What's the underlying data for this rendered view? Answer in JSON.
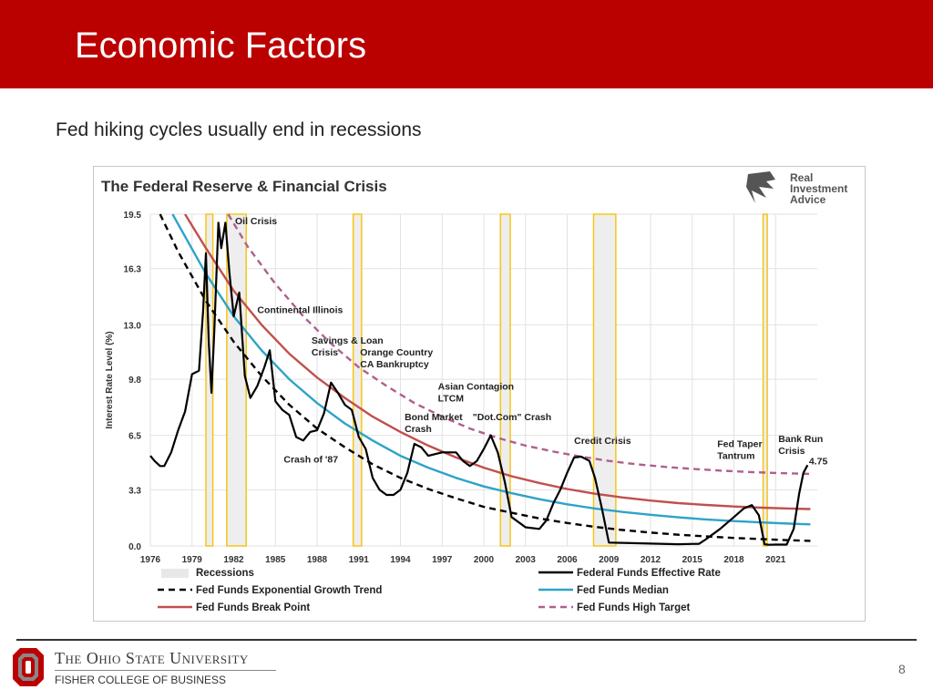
{
  "slide": {
    "title": "Economic Factors",
    "subtitle": "Fed hiking cycles usually end in recessions",
    "page_number": "8",
    "footer": {
      "university": "The Ohio State University",
      "college": "FISHER COLLEGE OF BUSINESS"
    }
  },
  "chart_data": {
    "type": "line",
    "title": "The Federal Reserve & Financial Crisis",
    "brand": [
      "Real",
      "Investment",
      "Advice"
    ],
    "ylabel": "Interest Rate Level (%)",
    "xlabel": "",
    "xlim": [
      1976,
      2024
    ],
    "ylim": [
      0,
      19.5
    ],
    "y_ticks": [
      0.0,
      3.3,
      6.5,
      9.8,
      13.0,
      16.3,
      19.5
    ],
    "y_tick_labels": [
      "0.0",
      "3.3",
      "6.5",
      "9.8",
      "13.0",
      "16.3",
      "19.5"
    ],
    "x_ticks": [
      1976,
      1979,
      1982,
      1985,
      1988,
      1991,
      1994,
      1997,
      2000,
      2003,
      2006,
      2009,
      2012,
      2015,
      2018,
      2021
    ],
    "x_tick_labels": [
      "1976",
      "1979",
      "1982",
      "1985",
      "1988",
      "1991",
      "1994",
      "1997",
      "2000",
      "2003",
      "2006",
      "2009",
      "2012",
      "2015",
      "2018",
      "2021"
    ],
    "grid": true,
    "legend_position": "bottom",
    "recessions": [
      [
        1980.0,
        1980.5
      ],
      [
        1981.5,
        1982.9
      ],
      [
        1990.6,
        1991.2
      ],
      [
        2001.2,
        2001.9
      ],
      [
        2007.9,
        2009.5
      ],
      [
        2020.1,
        2020.4
      ]
    ],
    "series": [
      {
        "name": "Federal Funds Effective Rate",
        "style": "solid",
        "color": "#000000",
        "x": [
          1976.0,
          1976.3,
          1976.7,
          1977.0,
          1977.5,
          1978.0,
          1978.5,
          1979.0,
          1979.5,
          1979.8,
          1980.0,
          1980.2,
          1980.4,
          1980.6,
          1980.9,
          1981.1,
          1981.4,
          1981.7,
          1982.0,
          1982.4,
          1982.8,
          1983.2,
          1983.7,
          1984.2,
          1984.6,
          1985.0,
          1985.5,
          1986.0,
          1986.5,
          1987.0,
          1987.5,
          1988.0,
          1988.5,
          1989.0,
          1989.5,
          1990.0,
          1990.5,
          1991.0,
          1991.5,
          1992.0,
          1992.5,
          1993.0,
          1993.5,
          1994.0,
          1994.5,
          1995.0,
          1995.5,
          1996.0,
          1997.0,
          1998.0,
          1998.5,
          1999.0,
          1999.5,
          2000.0,
          2000.5,
          2001.0,
          2001.5,
          2002.0,
          2003.0,
          2004.0,
          2004.5,
          2005.0,
          2005.5,
          2006.0,
          2006.5,
          2007.0,
          2007.6,
          2008.0,
          2008.5,
          2009.0,
          2010.0,
          2012.0,
          2014.0,
          2015.5,
          2016.0,
          2017.0,
          2018.0,
          2018.7,
          2019.3,
          2019.8,
          2020.2,
          2020.5,
          2021.0,
          2021.8,
          2022.3,
          2022.7,
          2023.0,
          2023.3
        ],
        "values": [
          5.3,
          5.0,
          4.7,
          4.7,
          5.5,
          6.8,
          7.9,
          10.1,
          10.3,
          13.8,
          17.2,
          12.0,
          9.0,
          12.5,
          19.0,
          17.5,
          19.0,
          16.0,
          13.5,
          14.9,
          10.0,
          8.7,
          9.4,
          10.5,
          11.5,
          8.5,
          8.0,
          7.7,
          6.4,
          6.2,
          6.7,
          6.8,
          7.8,
          9.6,
          9.0,
          8.3,
          8.0,
          6.4,
          5.7,
          4.0,
          3.3,
          3.0,
          3.0,
          3.3,
          4.3,
          6.0,
          5.8,
          5.3,
          5.5,
          5.5,
          5.0,
          4.7,
          5.0,
          5.7,
          6.5,
          5.5,
          3.8,
          1.7,
          1.1,
          1.0,
          1.5,
          2.5,
          3.3,
          4.3,
          5.2,
          5.25,
          5.0,
          4.0,
          2.2,
          0.2,
          0.18,
          0.14,
          0.1,
          0.13,
          0.4,
          1.0,
          1.7,
          2.2,
          2.4,
          1.8,
          0.1,
          0.07,
          0.08,
          0.08,
          1.0,
          3.1,
          4.3,
          4.75
        ]
      },
      {
        "name": "Fed Funds Exponential Growth Trend",
        "style": "dashed",
        "color": "#000000",
        "x": [
          1976.7,
          1978,
          1980,
          1982,
          1984,
          1986,
          1988,
          1990,
          1992,
          1994,
          1996,
          1998,
          2000,
          2002,
          2004,
          2006,
          2008,
          2010,
          2012,
          2014,
          2016,
          2018,
          2020,
          2022,
          2023.5
        ],
        "values": [
          19.5,
          17.3,
          14.4,
          12.0,
          10.0,
          8.3,
          6.9,
          5.8,
          4.8,
          4.0,
          3.35,
          2.8,
          2.3,
          1.95,
          1.62,
          1.35,
          1.12,
          0.94,
          0.79,
          0.66,
          0.56,
          0.47,
          0.4,
          0.34,
          0.3
        ]
      },
      {
        "name": "Fed Funds Median",
        "style": "solid",
        "color": "#2ea3c8",
        "x": [
          1977.6,
          1980,
          1982,
          1984,
          1986,
          1988,
          1990,
          1992,
          1994,
          1996,
          1998,
          2000,
          2002,
          2004,
          2006,
          2008,
          2010,
          2012,
          2014,
          2016,
          2018,
          2020,
          2022,
          2023.5
        ],
        "values": [
          19.5,
          16.0,
          13.5,
          11.5,
          9.8,
          8.4,
          7.2,
          6.2,
          5.3,
          4.6,
          4.0,
          3.5,
          3.1,
          2.75,
          2.45,
          2.2,
          2.0,
          1.83,
          1.68,
          1.56,
          1.46,
          1.38,
          1.31,
          1.27
        ]
      },
      {
        "name": "Fed Funds Break Point",
        "style": "solid",
        "color": "#c0504d",
        "x": [
          1978.5,
          1980,
          1982,
          1984,
          1986,
          1988,
          1990,
          1992,
          1994,
          1996,
          1998,
          2000,
          2002,
          2004,
          2006,
          2008,
          2010,
          2012,
          2014,
          2016,
          2018,
          2020,
          2022,
          2023.5
        ],
        "values": [
          19.5,
          17.5,
          15.0,
          13.0,
          11.3,
          9.9,
          8.7,
          7.6,
          6.7,
          5.9,
          5.2,
          4.6,
          4.1,
          3.7,
          3.35,
          3.07,
          2.85,
          2.67,
          2.52,
          2.41,
          2.32,
          2.25,
          2.2,
          2.17
        ]
      },
      {
        "name": "Fed Funds High Target",
        "style": "dashed",
        "color": "#b0608e",
        "x": [
          1981.6,
          1983,
          1985,
          1987,
          1989,
          1991,
          1993,
          1995,
          1997,
          1999,
          2001,
          2003,
          2005,
          2007,
          2009,
          2011,
          2013,
          2015,
          2017,
          2019,
          2021,
          2023.5
        ],
        "values": [
          19.5,
          17.6,
          15.4,
          13.5,
          11.9,
          10.5,
          9.4,
          8.4,
          7.6,
          6.9,
          6.35,
          5.9,
          5.55,
          5.25,
          5.0,
          4.8,
          4.65,
          4.53,
          4.43,
          4.35,
          4.29,
          4.23
        ]
      }
    ],
    "annotations": [
      {
        "text": [
          "Oil Crisis"
        ],
        "x": 1982.1,
        "y": 18.9
      },
      {
        "text": [
          "Continental Illinois"
        ],
        "x": 1983.7,
        "y": 13.7
      },
      {
        "text": [
          "Savings & Loan",
          "Crisis"
        ],
        "x": 1987.6,
        "y": 11.9
      },
      {
        "text": [
          "Orange Country",
          "CA Bankruptcy"
        ],
        "x": 1991.1,
        "y": 11.2
      },
      {
        "text": [
          "Asian Contagion",
          "LTCM"
        ],
        "x": 1996.7,
        "y": 9.2
      },
      {
        "text": [
          "Bond Market",
          "Crash"
        ],
        "x": 1994.3,
        "y": 7.4
      },
      {
        "text": [
          "\"Dot.Com\" Crash"
        ],
        "x": 1999.2,
        "y": 7.4
      },
      {
        "text": [
          "Crash of '87"
        ],
        "x": 1985.6,
        "y": 4.9
      },
      {
        "text": [
          "Credit Crisis"
        ],
        "x": 2006.5,
        "y": 6.0
      },
      {
        "text": [
          "Fed Taper",
          "Tantrum"
        ],
        "x": 2016.8,
        "y": 5.8
      },
      {
        "text": [
          "Bank Run",
          "Crisis"
        ],
        "x": 2021.2,
        "y": 6.1
      },
      {
        "text": [
          "4.75"
        ],
        "x": 2023.4,
        "y": 4.8
      }
    ],
    "legend": [
      {
        "label": "Recessions",
        "kind": "box",
        "color": "#e8e8e8"
      },
      {
        "label": "Federal Funds Effective Rate",
        "kind": "solid",
        "color": "#000000"
      },
      {
        "label": "Fed Funds Exponential Growth Trend",
        "kind": "dashed",
        "color": "#000000"
      },
      {
        "label": "Fed Funds Median",
        "kind": "solid",
        "color": "#2ea3c8"
      },
      {
        "label": "Fed Funds Break Point",
        "kind": "solid",
        "color": "#c0504d"
      },
      {
        "label": "Fed Funds High Target",
        "kind": "dashed",
        "color": "#b0608e"
      }
    ]
  }
}
